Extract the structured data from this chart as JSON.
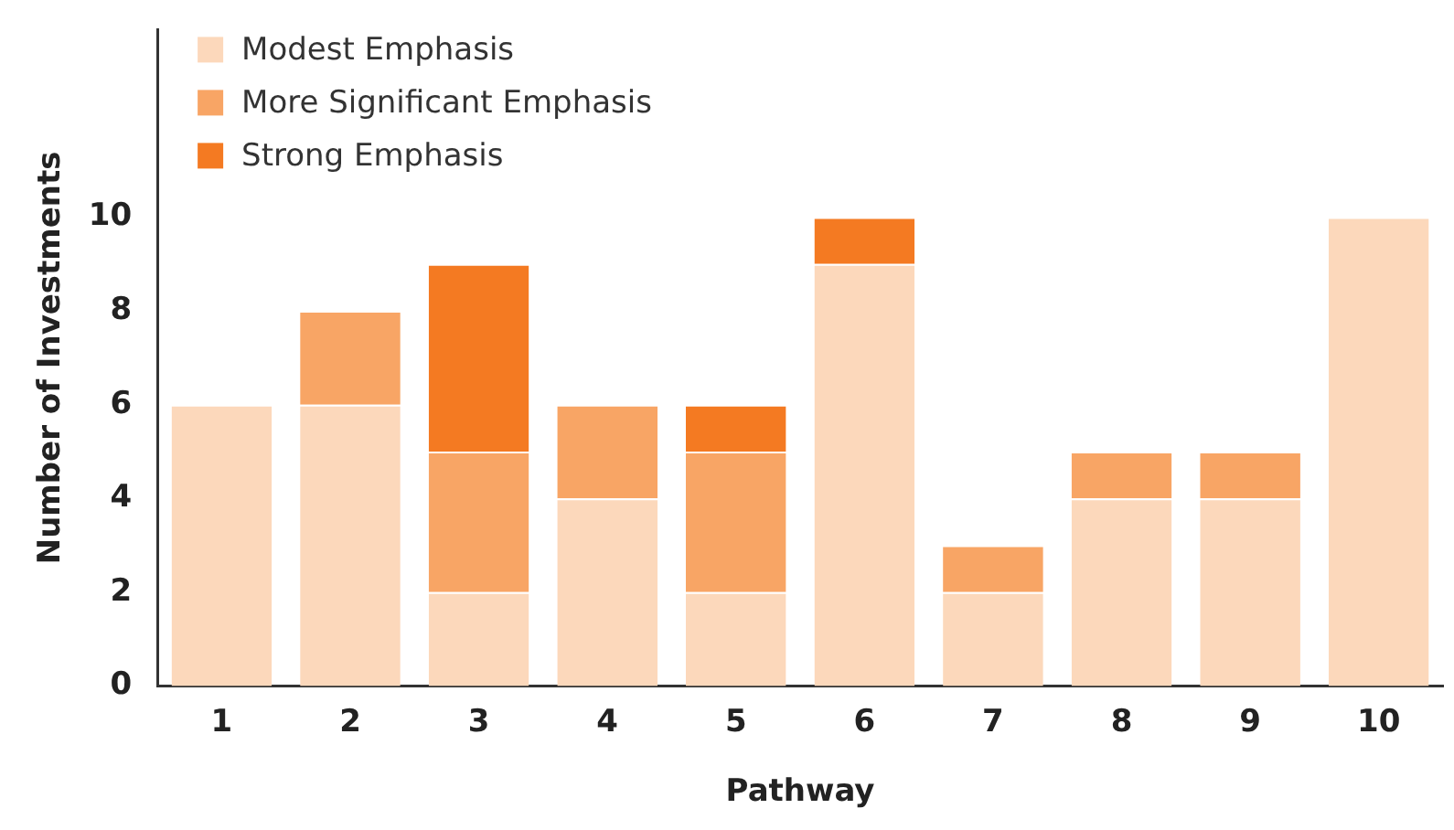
{
  "chart_data": {
    "type": "bar",
    "stacked": true,
    "xlabel": "Pathway",
    "ylabel": "Number of Investments",
    "categories": [
      "1",
      "2",
      "3",
      "4",
      "5",
      "6",
      "7",
      "8",
      "9",
      "10"
    ],
    "series": [
      {
        "name": "Modest Emphasis",
        "color": "#fcd8bb",
        "values": [
          6,
          6,
          2,
          4,
          2,
          9,
          2,
          4,
          4,
          10
        ]
      },
      {
        "name": "More Significant Emphasis",
        "color": "#f8a565",
        "values": [
          0,
          2,
          3,
          2,
          3,
          0,
          1,
          1,
          1,
          0
        ]
      },
      {
        "name": "Strong Emphasis",
        "color": "#f47a22",
        "values": [
          0,
          0,
          4,
          0,
          1,
          1,
          0,
          0,
          0,
          0
        ]
      }
    ],
    "ylim": [
      0,
      14
    ],
    "yticks": [
      0,
      2,
      4,
      6,
      8,
      10
    ],
    "grid": false,
    "legend": "top left"
  }
}
